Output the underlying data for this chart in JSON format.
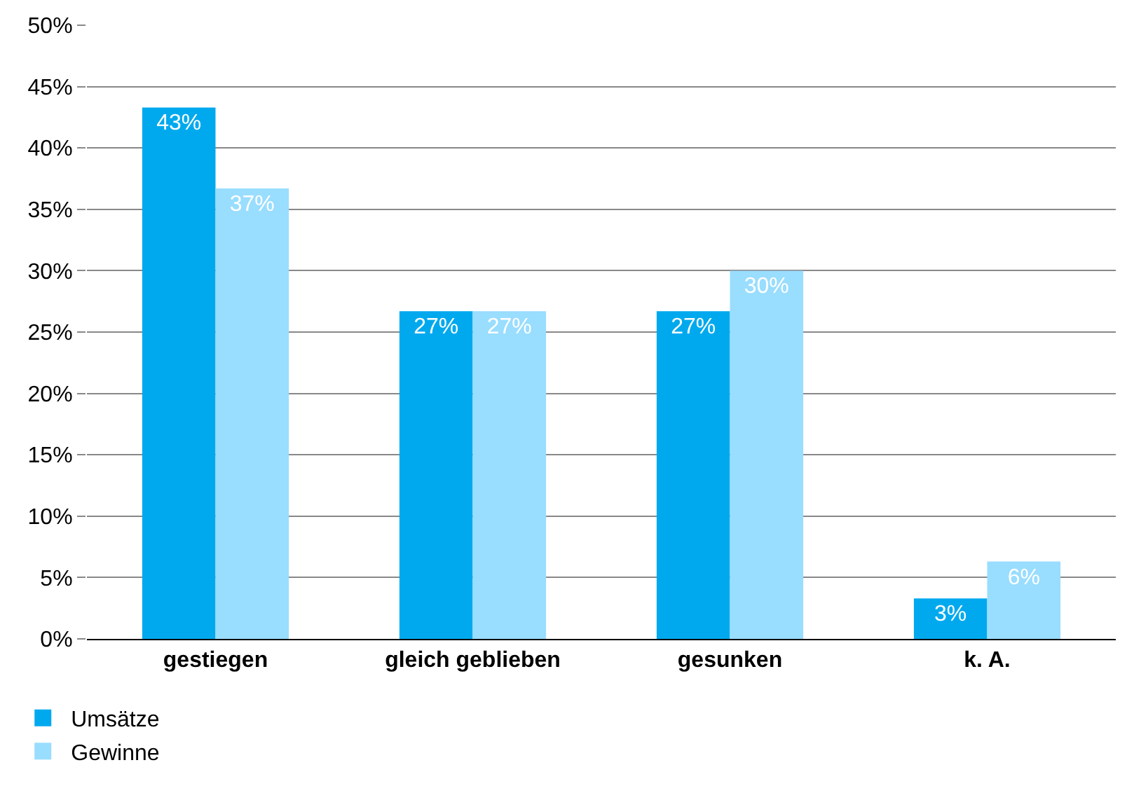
{
  "chart_data": {
    "type": "bar",
    "categories": [
      "gestiegen",
      "gleich geblieben",
      "gesunken",
      "k. A."
    ],
    "series": [
      {
        "name": "Umsätze",
        "color": "#00a9ee",
        "values": [
          43.3,
          26.7,
          26.7,
          3.3
        ],
        "value_labels": [
          "43%",
          "27%",
          "27%",
          "3%"
        ]
      },
      {
        "name": "Gewinne",
        "color": "#99ddff",
        "values": [
          36.7,
          26.7,
          30.0,
          6.3
        ],
        "value_labels": [
          "37%",
          "27%",
          "30%",
          "6%"
        ]
      }
    ],
    "ylim": [
      0,
      50
    ],
    "yticks": [
      {
        "value": 0,
        "label": "0%"
      },
      {
        "value": 5,
        "label": "5%"
      },
      {
        "value": 10,
        "label": "10%"
      },
      {
        "value": 15,
        "label": "15%"
      },
      {
        "value": 20,
        "label": "20%"
      },
      {
        "value": 25,
        "label": "25%"
      },
      {
        "value": 30,
        "label": "30%"
      },
      {
        "value": 35,
        "label": "35%"
      },
      {
        "value": 40,
        "label": "40%"
      },
      {
        "value": 45,
        "label": "45%"
      },
      {
        "value": 50,
        "label": "50%"
      }
    ],
    "grid": "y",
    "legend": "bottom left"
  }
}
